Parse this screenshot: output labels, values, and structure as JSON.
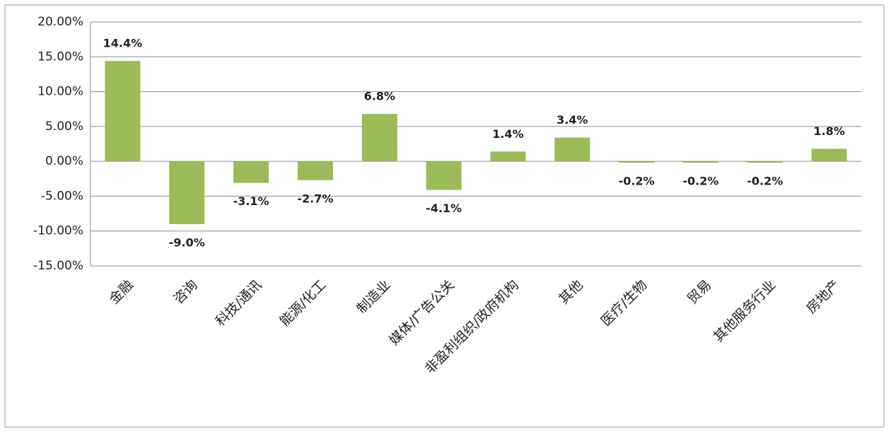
{
  "chart_data": {
    "type": "bar",
    "categories": [
      "金融",
      "咨询",
      "科技/通讯",
      "能源/化工",
      "制造业",
      "媒体/广告公关",
      "非盈利组织/政府机构",
      "其他",
      "医疗/生物",
      "贸易",
      "其他服务行业",
      "房地产"
    ],
    "values": [
      14.4,
      -9.0,
      -3.1,
      -2.7,
      6.8,
      -4.1,
      1.4,
      3.4,
      -0.2,
      -0.2,
      -0.2,
      1.8
    ],
    "value_labels": [
      "14.4%",
      "-9.0%",
      "-3.1%",
      "-2.7%",
      "6.8%",
      "-4.1%",
      "1.4%",
      "3.4%",
      "-0.2%",
      "-0.2%",
      "-0.2%",
      "1.8%"
    ],
    "color": "#9bbb59",
    "ylim": [
      -15,
      20
    ],
    "yticks": [
      {
        "value": -15,
        "label": "-15.00%"
      },
      {
        "value": -10,
        "label": "-10.00%"
      },
      {
        "value": -5,
        "label": "-5.00%"
      },
      {
        "value": 0,
        "label": "0.00%"
      },
      {
        "value": 5,
        "label": "5.00%"
      },
      {
        "value": 10,
        "label": "10.00%"
      },
      {
        "value": 15,
        "label": "15.00%"
      },
      {
        "value": 20,
        "label": "20.00%"
      }
    ],
    "grid": true
  }
}
